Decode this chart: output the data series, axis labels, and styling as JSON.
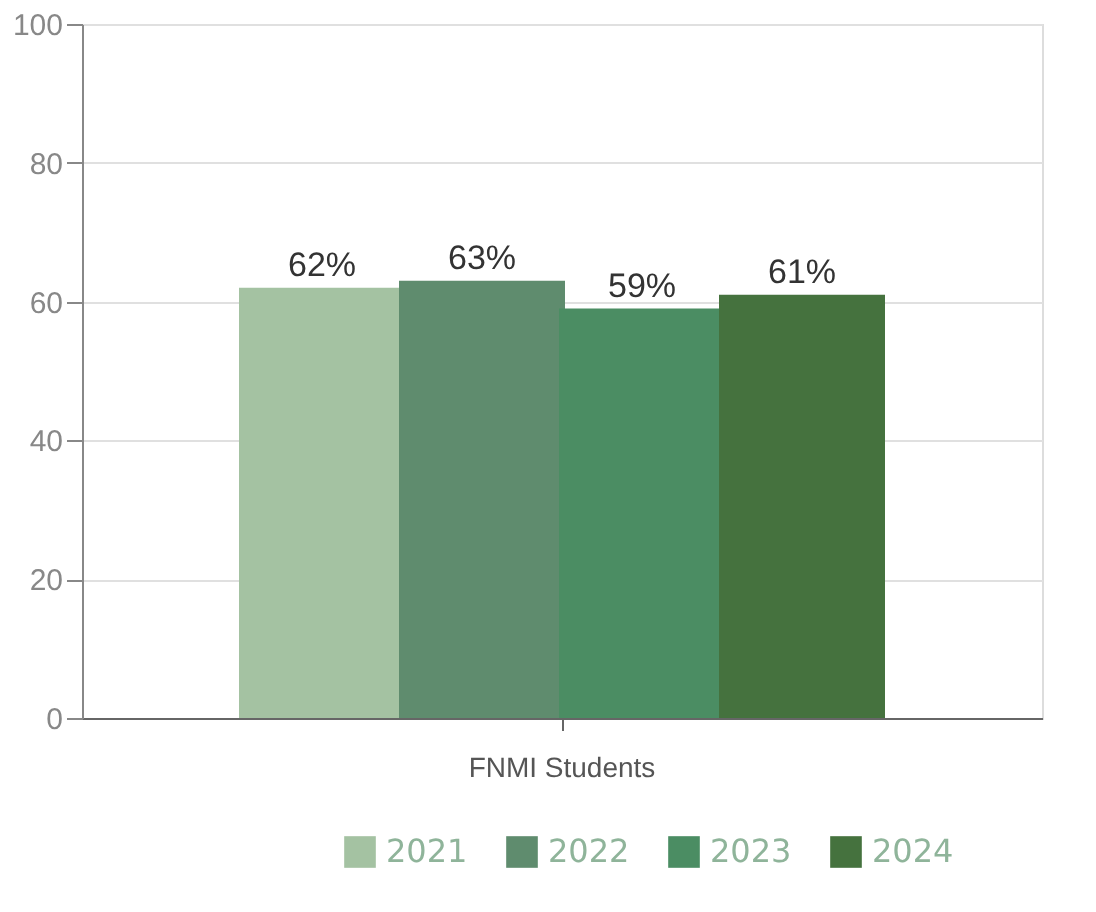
{
  "chart_data": {
    "type": "bar",
    "categories": [
      "FNMI Students"
    ],
    "series": [
      {
        "name": "2021",
        "color": "#a4c2a2",
        "values": [
          62
        ],
        "value_labels": [
          "62%"
        ]
      },
      {
        "name": "2022",
        "color": "#5f8c6e",
        "values": [
          63
        ],
        "value_labels": [
          "63%"
        ]
      },
      {
        "name": "2023",
        "color": "#4b8d63",
        "values": [
          59
        ],
        "value_labels": [
          "59%"
        ]
      },
      {
        "name": "2024",
        "color": "#45723e",
        "values": [
          61
        ],
        "value_labels": [
          "61%"
        ]
      }
    ],
    "ylim": [
      0,
      100
    ],
    "yticks": [
      0,
      20,
      40,
      60,
      80,
      100
    ],
    "grid": "y",
    "legend": "bottom right"
  }
}
